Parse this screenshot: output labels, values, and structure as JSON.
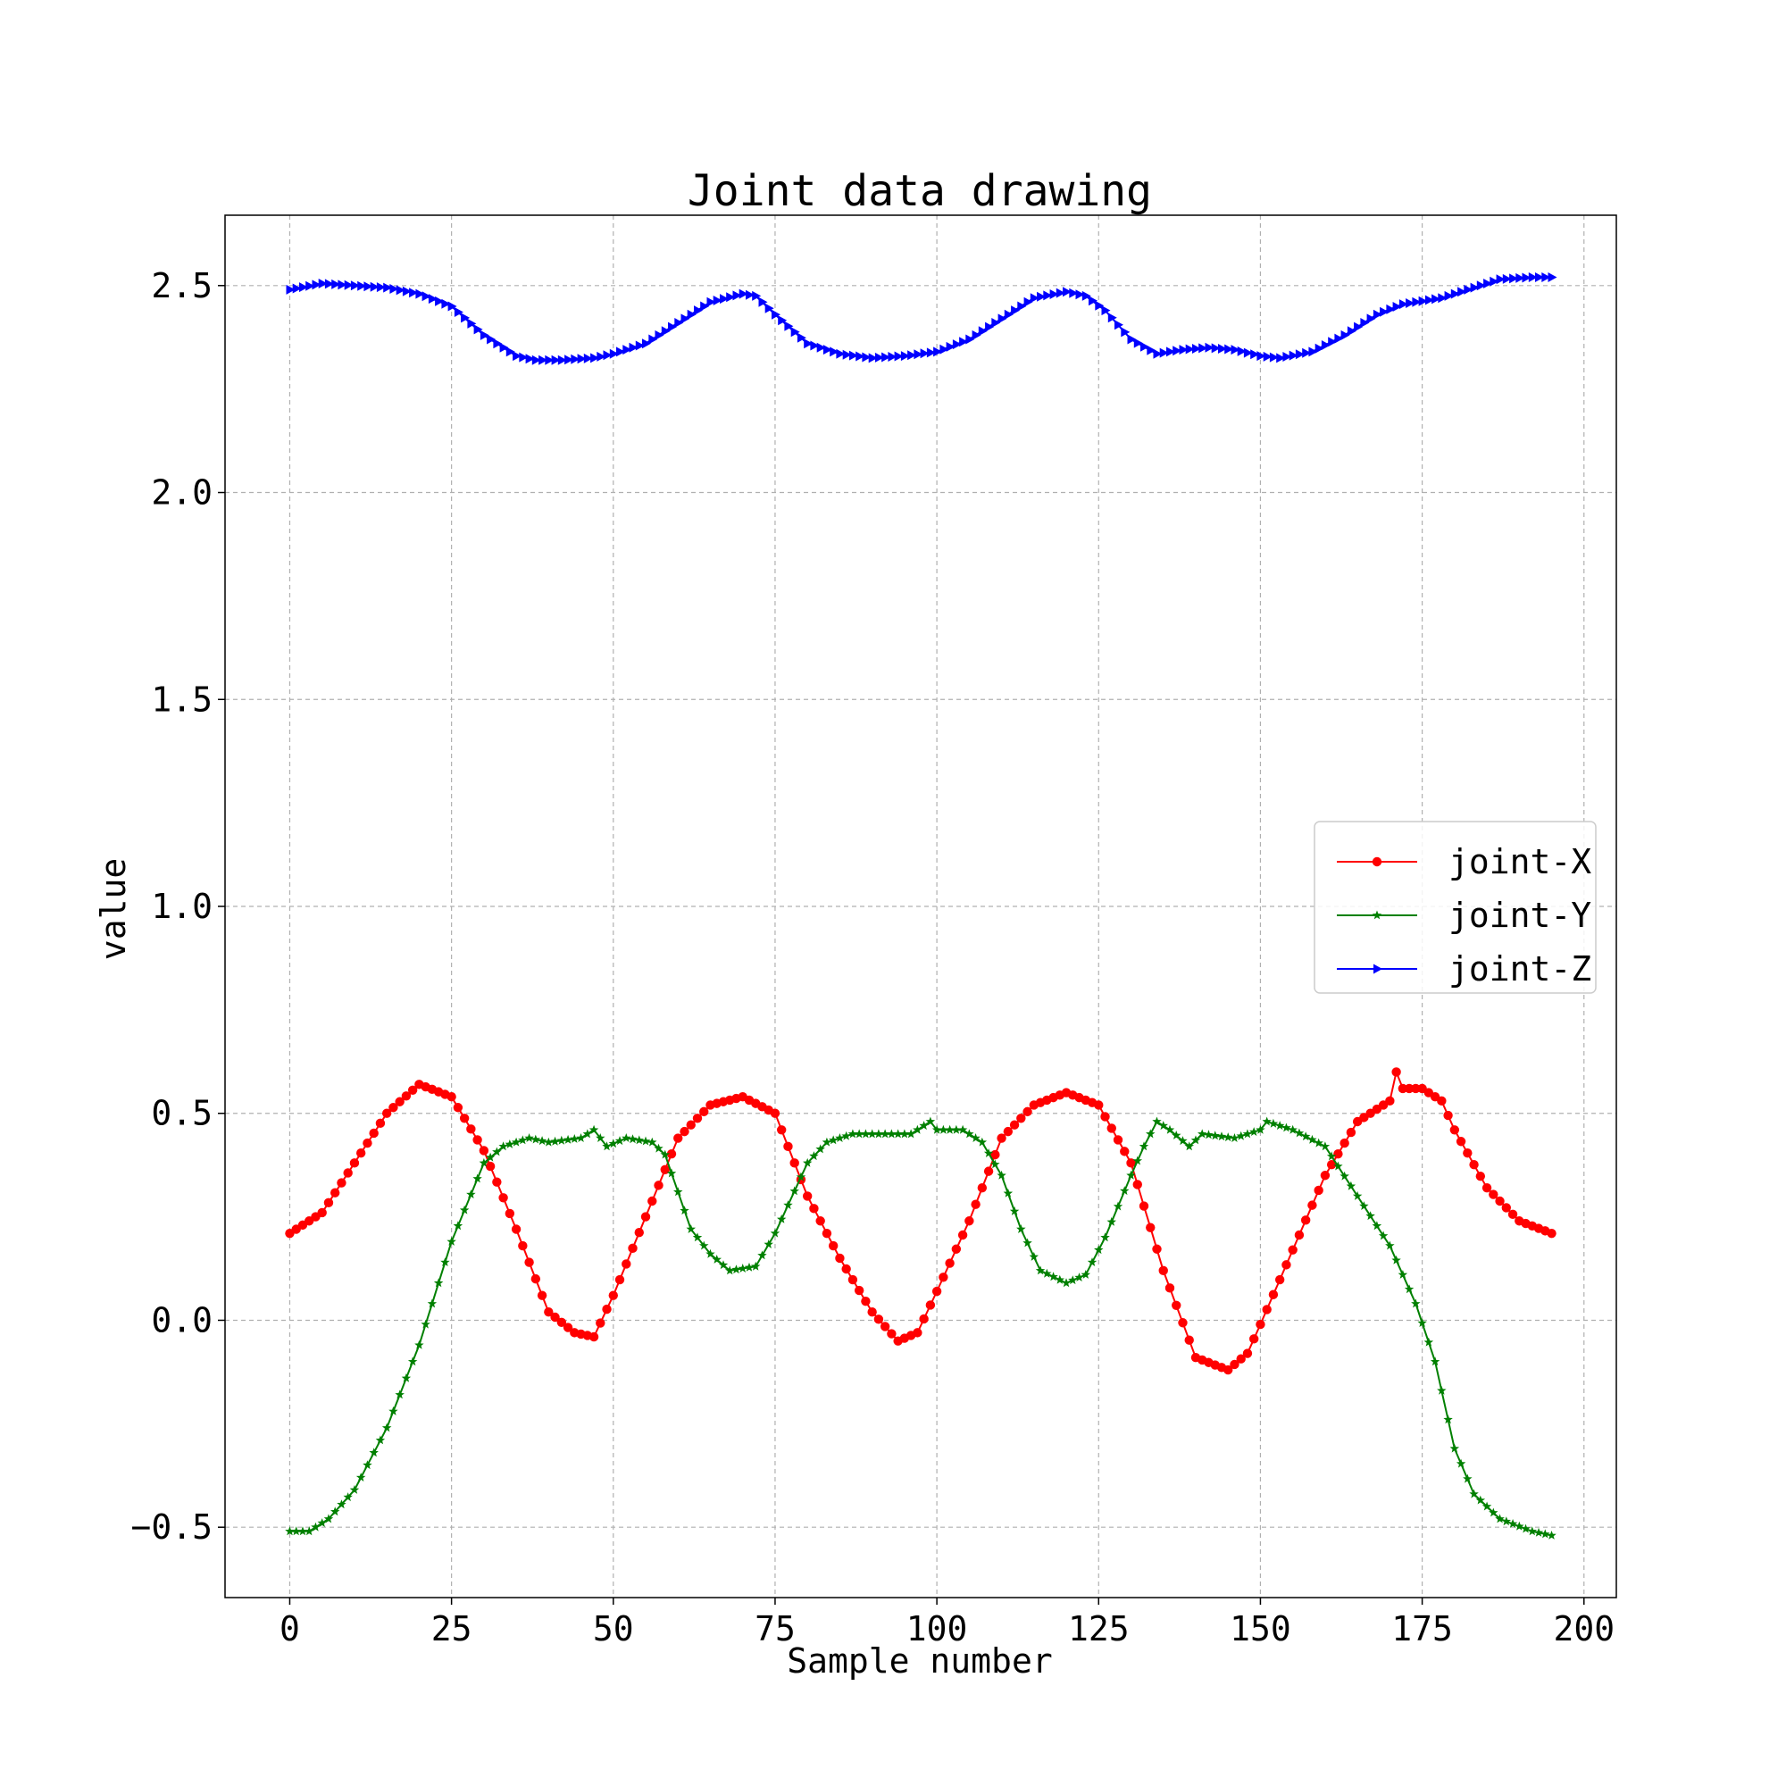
{
  "chart_data": {
    "type": "line",
    "title": "Joint data drawing",
    "xlabel": "Sample number",
    "ylabel": "value",
    "xlim": [
      -10,
      205
    ],
    "ylim": [
      -0.67,
      2.67
    ],
    "x_ticks": [
      0,
      25,
      50,
      75,
      100,
      125,
      150,
      175,
      200
    ],
    "x_tick_labels": [
      "0",
      "25",
      "50",
      "75",
      "100",
      "125",
      "150",
      "175",
      "200"
    ],
    "y_ticks": [
      -0.5,
      0.0,
      0.5,
      1.0,
      1.5,
      2.0,
      2.5
    ],
    "y_tick_labels": [
      "−0.5",
      "0.0",
      "0.5",
      "1.0",
      "1.5",
      "2.0",
      "2.5"
    ],
    "grid": true,
    "legend_position": "center-right",
    "series": [
      {
        "name": "joint-X",
        "color": "#ff0000",
        "marker": "circle",
        "keypoints": [
          [
            0,
            0.21
          ],
          [
            5,
            0.26
          ],
          [
            10,
            0.38
          ],
          [
            15,
            0.5
          ],
          [
            20,
            0.57
          ],
          [
            25,
            0.54
          ],
          [
            30,
            0.41
          ],
          [
            35,
            0.22
          ],
          [
            40,
            0.02
          ],
          [
            44,
            -0.03
          ],
          [
            47,
            -0.04
          ],
          [
            50,
            0.06
          ],
          [
            55,
            0.25
          ],
          [
            60,
            0.44
          ],
          [
            65,
            0.52
          ],
          [
            70,
            0.54
          ],
          [
            75,
            0.5
          ],
          [
            80,
            0.3
          ],
          [
            85,
            0.15
          ],
          [
            90,
            0.02
          ],
          [
            94,
            -0.05
          ],
          [
            97,
            -0.03
          ],
          [
            100,
            0.07
          ],
          [
            105,
            0.24
          ],
          [
            110,
            0.44
          ],
          [
            115,
            0.52
          ],
          [
            120,
            0.55
          ],
          [
            125,
            0.52
          ],
          [
            130,
            0.38
          ],
          [
            135,
            0.12
          ],
          [
            140,
            -0.09
          ],
          [
            145,
            -0.12
          ],
          [
            148,
            -0.08
          ],
          [
            150,
            -0.01
          ],
          [
            155,
            0.17
          ],
          [
            160,
            0.35
          ],
          [
            165,
            0.48
          ],
          [
            170,
            0.53
          ],
          [
            171,
            0.6
          ],
          [
            172,
            0.56
          ],
          [
            175,
            0.56
          ],
          [
            178,
            0.53
          ],
          [
            180,
            0.46
          ],
          [
            185,
            0.32
          ],
          [
            190,
            0.24
          ],
          [
            195,
            0.21
          ]
        ]
      },
      {
        "name": "joint-Y",
        "color": "#008000",
        "marker": "star",
        "keypoints": [
          [
            0,
            -0.51
          ],
          [
            3,
            -0.51
          ],
          [
            6,
            -0.48
          ],
          [
            10,
            -0.41
          ],
          [
            15,
            -0.26
          ],
          [
            20,
            -0.06
          ],
          [
            25,
            0.19
          ],
          [
            30,
            0.38
          ],
          [
            33,
            0.42
          ],
          [
            37,
            0.44
          ],
          [
            40,
            0.43
          ],
          [
            45,
            0.44
          ],
          [
            47,
            0.46
          ],
          [
            49,
            0.42
          ],
          [
            52,
            0.44
          ],
          [
            56,
            0.43
          ],
          [
            58,
            0.4
          ],
          [
            62,
            0.22
          ],
          [
            65,
            0.16
          ],
          [
            68,
            0.12
          ],
          [
            72,
            0.13
          ],
          [
            75,
            0.21
          ],
          [
            80,
            0.38
          ],
          [
            83,
            0.43
          ],
          [
            87,
            0.45
          ],
          [
            92,
            0.45
          ],
          [
            96,
            0.45
          ],
          [
            99,
            0.48
          ],
          [
            100,
            0.46
          ],
          [
            104,
            0.46
          ],
          [
            107,
            0.43
          ],
          [
            110,
            0.35
          ],
          [
            113,
            0.22
          ],
          [
            116,
            0.12
          ],
          [
            120,
            0.09
          ],
          [
            123,
            0.11
          ],
          [
            126,
            0.2
          ],
          [
            130,
            0.35
          ],
          [
            132,
            0.42
          ],
          [
            134,
            0.48
          ],
          [
            136,
            0.46
          ],
          [
            139,
            0.42
          ],
          [
            141,
            0.45
          ],
          [
            146,
            0.44
          ],
          [
            150,
            0.46
          ],
          [
            151,
            0.48
          ],
          [
            155,
            0.46
          ],
          [
            160,
            0.42
          ],
          [
            165,
            0.3
          ],
          [
            170,
            0.18
          ],
          [
            174,
            0.04
          ],
          [
            177,
            -0.1
          ],
          [
            180,
            -0.31
          ],
          [
            183,
            -0.42
          ],
          [
            187,
            -0.48
          ],
          [
            192,
            -0.51
          ],
          [
            195,
            -0.52
          ]
        ]
      },
      {
        "name": "joint-Z",
        "color": "#0000ff",
        "marker": "triangle-right",
        "keypoints": [
          [
            0,
            2.49
          ],
          [
            5,
            2.505
          ],
          [
            10,
            2.5
          ],
          [
            15,
            2.495
          ],
          [
            20,
            2.48
          ],
          [
            25,
            2.45
          ],
          [
            30,
            2.38
          ],
          [
            35,
            2.33
          ],
          [
            38,
            2.32
          ],
          [
            42,
            2.32
          ],
          [
            47,
            2.325
          ],
          [
            50,
            2.335
          ],
          [
            55,
            2.36
          ],
          [
            60,
            2.41
          ],
          [
            65,
            2.46
          ],
          [
            70,
            2.48
          ],
          [
            72,
            2.475
          ],
          [
            75,
            2.43
          ],
          [
            80,
            2.36
          ],
          [
            85,
            2.335
          ],
          [
            90,
            2.325
          ],
          [
            95,
            2.33
          ],
          [
            100,
            2.34
          ],
          [
            105,
            2.37
          ],
          [
            110,
            2.42
          ],
          [
            115,
            2.47
          ],
          [
            120,
            2.485
          ],
          [
            123,
            2.475
          ],
          [
            126,
            2.44
          ],
          [
            130,
            2.37
          ],
          [
            134,
            2.335
          ],
          [
            138,
            2.345
          ],
          [
            142,
            2.35
          ],
          [
            146,
            2.345
          ],
          [
            150,
            2.33
          ],
          [
            153,
            2.325
          ],
          [
            158,
            2.34
          ],
          [
            163,
            2.38
          ],
          [
            168,
            2.43
          ],
          [
            172,
            2.455
          ],
          [
            178,
            2.47
          ],
          [
            182,
            2.49
          ],
          [
            187,
            2.515
          ],
          [
            192,
            2.52
          ],
          [
            195,
            2.52
          ]
        ]
      }
    ]
  }
}
